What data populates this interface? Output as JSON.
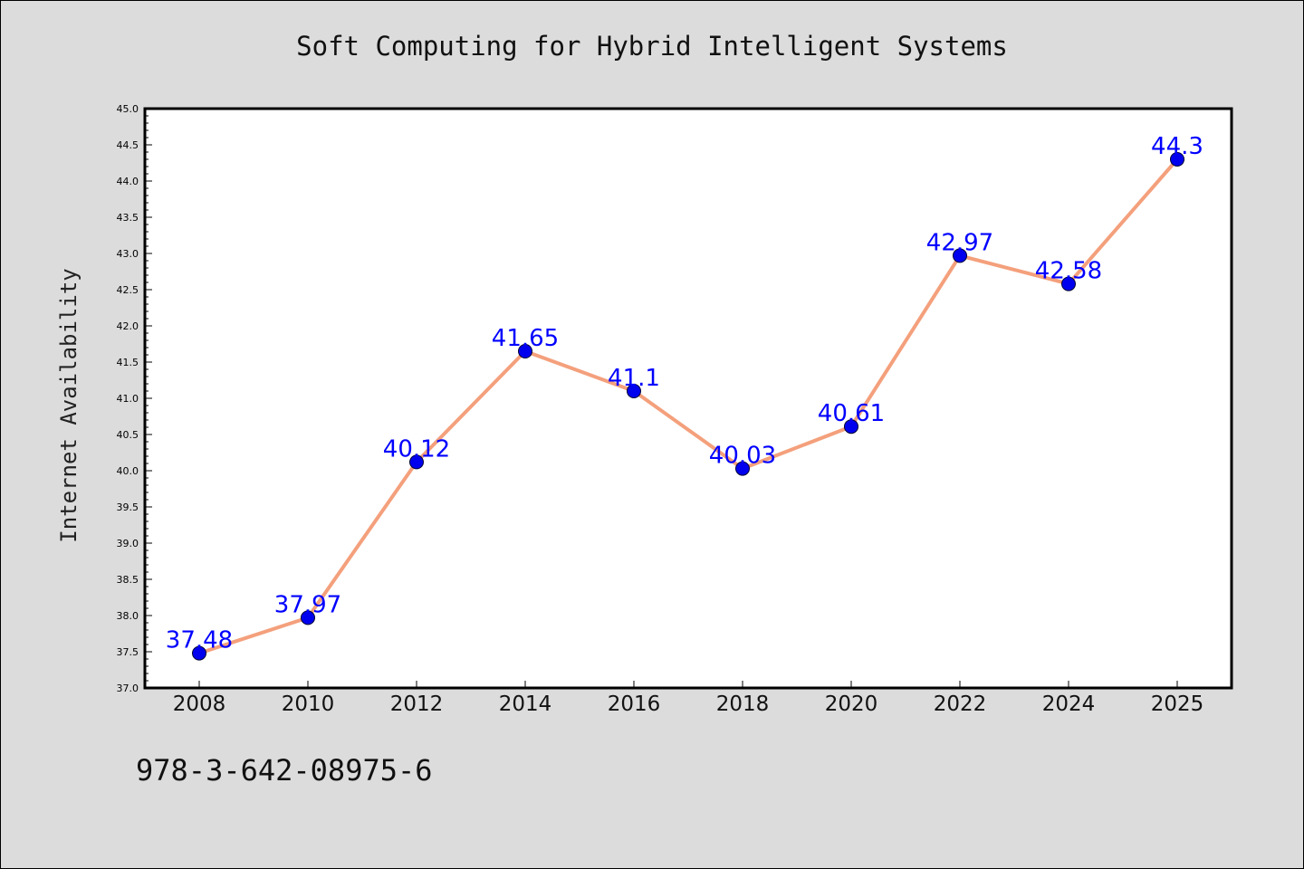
{
  "chart_data": {
    "type": "line",
    "title": "Soft Computing for Hybrid Intelligent Systems",
    "xlabel": "",
    "ylabel": "Internet Availability",
    "categories": [
      "2008",
      "2010",
      "2012",
      "2014",
      "2016",
      "2018",
      "2020",
      "2022",
      "2024",
      "2025"
    ],
    "values": [
      37.48,
      37.97,
      40.12,
      41.65,
      41.1,
      40.03,
      40.61,
      42.97,
      42.58,
      44.3
    ],
    "data_labels": [
      "37.48",
      "37.97",
      "40.12",
      "41.65",
      "41.1",
      "40.03",
      "40.61",
      "42.97",
      "42.58",
      "44.3"
    ],
    "ylim": [
      37.0,
      45.0
    ],
    "yticks": [
      "37.0",
      "37.5",
      "38.0",
      "38.5",
      "39.0",
      "39.5",
      "40.0",
      "40.5",
      "41.0",
      "41.5",
      "42.0",
      "42.5",
      "43.0",
      "43.5",
      "44.0",
      "44.5",
      "45.0"
    ],
    "grid": false,
    "colors": {
      "line": "#f4a07c",
      "marker": "#0000ee",
      "label": "#0000ff",
      "background": "#dcdcdc",
      "plot_area": "#ffffff"
    }
  },
  "footer": {
    "isbn": "978-3-642-08975-6"
  }
}
